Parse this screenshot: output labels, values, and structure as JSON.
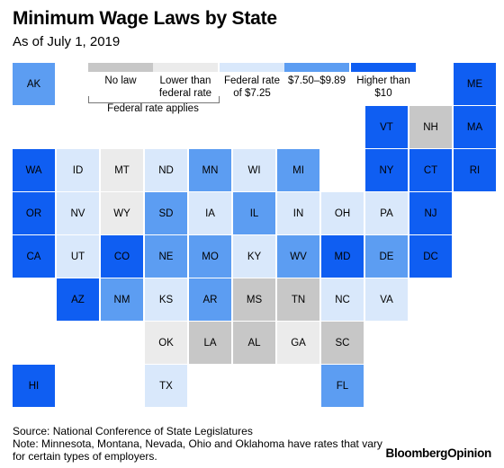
{
  "header": {
    "title": "Minimum Wage Laws by State",
    "subtitle": "As of July 1, 2019"
  },
  "legend": {
    "categories": [
      {
        "key": "none",
        "label": "No law",
        "color": "#c7c7c7"
      },
      {
        "key": "lower",
        "label": "Lower than federal rate",
        "color": "#ebebeb"
      },
      {
        "key": "federal",
        "label": "Federal rate of $7.25",
        "color": "#d9e8fb"
      },
      {
        "key": "mid",
        "label": "$7.50–$9.89",
        "color": "#5c9df2"
      },
      {
        "key": "high",
        "label": "Higher than $10",
        "color": "#0f5ef2"
      }
    ],
    "bracket_label": "Federal rate applies"
  },
  "chart_data": {
    "type": "tile-map",
    "states": [
      {
        "code": "AK",
        "col": 0,
        "row": 0,
        "category": "mid"
      },
      {
        "code": "ME",
        "col": 10,
        "row": 0,
        "category": "high"
      },
      {
        "code": "VT",
        "col": 8,
        "row": 1,
        "category": "high"
      },
      {
        "code": "NH",
        "col": 9,
        "row": 1,
        "category": "none"
      },
      {
        "code": "MA",
        "col": 10,
        "row": 1,
        "category": "high"
      },
      {
        "code": "WA",
        "col": 0,
        "row": 2,
        "category": "high"
      },
      {
        "code": "ID",
        "col": 1,
        "row": 2,
        "category": "federal"
      },
      {
        "code": "MT",
        "col": 2,
        "row": 2,
        "category": "lower"
      },
      {
        "code": "ND",
        "col": 3,
        "row": 2,
        "category": "federal"
      },
      {
        "code": "MN",
        "col": 4,
        "row": 2,
        "category": "mid"
      },
      {
        "code": "WI",
        "col": 5,
        "row": 2,
        "category": "federal"
      },
      {
        "code": "MI",
        "col": 6,
        "row": 2,
        "category": "mid"
      },
      {
        "code": "NY",
        "col": 8,
        "row": 2,
        "category": "high"
      },
      {
        "code": "CT",
        "col": 9,
        "row": 2,
        "category": "high"
      },
      {
        "code": "RI",
        "col": 10,
        "row": 2,
        "category": "high"
      },
      {
        "code": "OR",
        "col": 0,
        "row": 3,
        "category": "high"
      },
      {
        "code": "NV",
        "col": 1,
        "row": 3,
        "category": "federal"
      },
      {
        "code": "WY",
        "col": 2,
        "row": 3,
        "category": "lower"
      },
      {
        "code": "SD",
        "col": 3,
        "row": 3,
        "category": "mid"
      },
      {
        "code": "IA",
        "col": 4,
        "row": 3,
        "category": "federal"
      },
      {
        "code": "IL",
        "col": 5,
        "row": 3,
        "category": "mid"
      },
      {
        "code": "IN",
        "col": 6,
        "row": 3,
        "category": "federal"
      },
      {
        "code": "OH",
        "col": 7,
        "row": 3,
        "category": "federal"
      },
      {
        "code": "PA",
        "col": 8,
        "row": 3,
        "category": "federal"
      },
      {
        "code": "NJ",
        "col": 9,
        "row": 3,
        "category": "high"
      },
      {
        "code": "CA",
        "col": 0,
        "row": 4,
        "category": "high"
      },
      {
        "code": "UT",
        "col": 1,
        "row": 4,
        "category": "federal"
      },
      {
        "code": "CO",
        "col": 2,
        "row": 4,
        "category": "high"
      },
      {
        "code": "NE",
        "col": 3,
        "row": 4,
        "category": "mid"
      },
      {
        "code": "MO",
        "col": 4,
        "row": 4,
        "category": "mid"
      },
      {
        "code": "KY",
        "col": 5,
        "row": 4,
        "category": "federal"
      },
      {
        "code": "WV",
        "col": 6,
        "row": 4,
        "category": "mid"
      },
      {
        "code": "MD",
        "col": 7,
        "row": 4,
        "category": "high"
      },
      {
        "code": "DE",
        "col": 8,
        "row": 4,
        "category": "mid"
      },
      {
        "code": "DC",
        "col": 9,
        "row": 4,
        "category": "high"
      },
      {
        "code": "AZ",
        "col": 1,
        "row": 5,
        "category": "high"
      },
      {
        "code": "NM",
        "col": 2,
        "row": 5,
        "category": "mid"
      },
      {
        "code": "KS",
        "col": 3,
        "row": 5,
        "category": "federal"
      },
      {
        "code": "AR",
        "col": 4,
        "row": 5,
        "category": "mid"
      },
      {
        "code": "MS",
        "col": 5,
        "row": 5,
        "category": "none"
      },
      {
        "code": "TN",
        "col": 6,
        "row": 5,
        "category": "none"
      },
      {
        "code": "NC",
        "col": 7,
        "row": 5,
        "category": "federal"
      },
      {
        "code": "VA",
        "col": 8,
        "row": 5,
        "category": "federal"
      },
      {
        "code": "OK",
        "col": 3,
        "row": 6,
        "category": "lower"
      },
      {
        "code": "LA",
        "col": 4,
        "row": 6,
        "category": "none"
      },
      {
        "code": "AL",
        "col": 5,
        "row": 6,
        "category": "none"
      },
      {
        "code": "GA",
        "col": 6,
        "row": 6,
        "category": "lower"
      },
      {
        "code": "SC",
        "col": 7,
        "row": 6,
        "category": "none"
      },
      {
        "code": "HI",
        "col": 0,
        "row": 7,
        "category": "high"
      },
      {
        "code": "TX",
        "col": 3,
        "row": 7,
        "category": "federal"
      },
      {
        "code": "FL",
        "col": 7,
        "row": 7,
        "category": "mid"
      }
    ]
  },
  "footer": {
    "source": "Source: National Conference of State Legislatures",
    "note_line1": "Note: Minnesota, Montana, Nevada, Ohio and Oklahoma have rates that vary",
    "note_line2": "for certain types of employers.",
    "brand": "BloombergOpinion"
  }
}
